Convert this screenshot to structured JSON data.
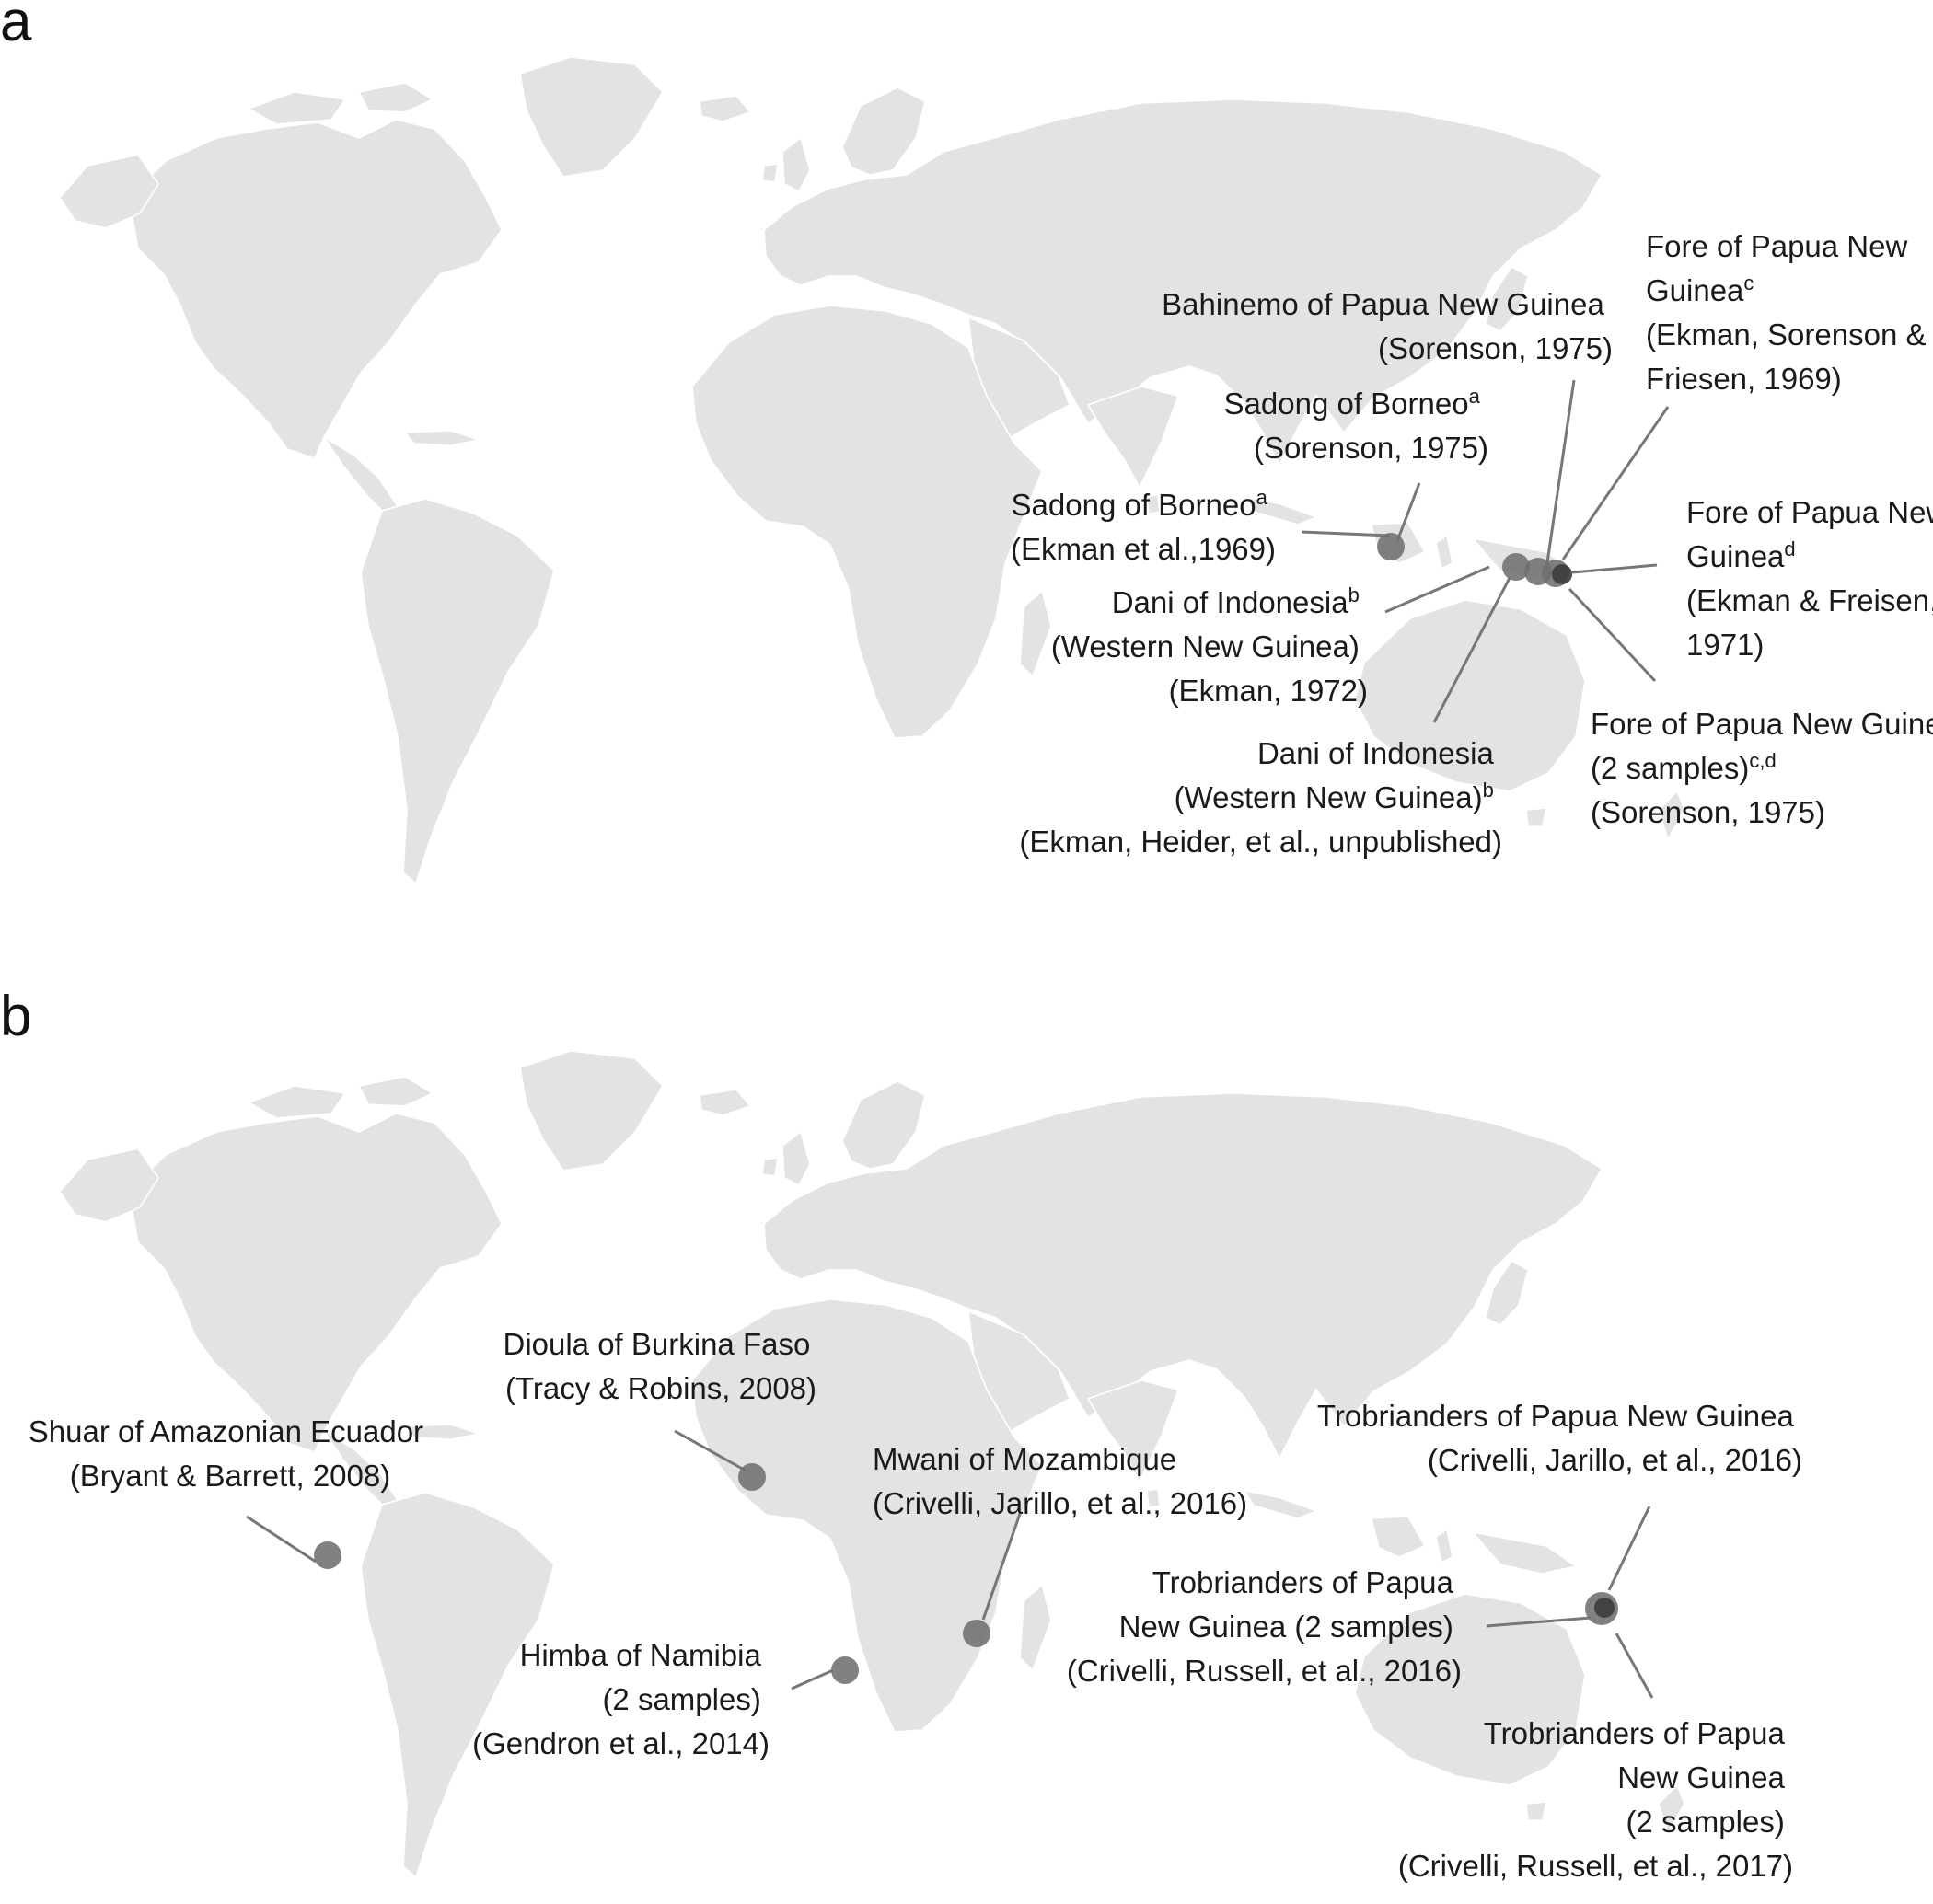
{
  "panels": [
    {
      "letter": "a",
      "labels": [
        {
          "lines": [
            "Bahinemo of Papua New Guinea",
            "(Sorenson, 1975)"
          ]
        },
        {
          "lines": [
            "Fore of Papua New",
            "Guinea^c",
            "(Ekman, Sorenson &",
            "Friesen, 1969)"
          ]
        },
        {
          "lines": [
            "Sadong of Borneo^a",
            "(Sorenson, 1975)"
          ]
        },
        {
          "lines": [
            "Sadong of Borneo^a",
            "(Ekman et al.,1969)"
          ]
        },
        {
          "lines": [
            "Fore of Papua New",
            "Guinea^d",
            "(Ekman & Freisen,",
            "1971)"
          ]
        },
        {
          "lines": [
            "Dani of Indonesia^b",
            "(Western New Guinea)",
            "(Ekman, 1972)"
          ]
        },
        {
          "lines": [
            "Fore of Papua New Guinea",
            "(2 samples)^c,d",
            "(Sorenson, 1975)"
          ]
        },
        {
          "lines": [
            "Dani of Indonesia",
            "(Western New Guinea)^b",
            "(Ekman, Heider, et al., unpublished)"
          ]
        }
      ]
    },
    {
      "letter": "b",
      "labels": [
        {
          "lines": [
            "Dioula of Burkina Faso",
            "(Tracy & Robins, 2008)"
          ]
        },
        {
          "lines": [
            "Shuar of Amazonian Ecuador",
            "(Bryant & Barrett, 2008)"
          ]
        },
        {
          "lines": [
            "Mwani of Mozambique",
            "(Crivelli, Jarillo, et al., 2016)"
          ]
        },
        {
          "lines": [
            "Himba of Namibia",
            "(2 samples)",
            "(Gendron et al., 2014)"
          ]
        },
        {
          "lines": [
            "Trobrianders of Papua New Guinea",
            "(Crivelli, Jarillo, et al., 2016)"
          ]
        },
        {
          "lines": [
            "Trobrianders of Papua",
            "New Guinea (2 samples)",
            "(Crivelli, Russell, et al., 2016)"
          ]
        },
        {
          "lines": [
            "Trobrianders of Papua",
            "New Guinea",
            "(2 samples)",
            "(Crivelli, Russell, et al., 2017)"
          ]
        }
      ]
    }
  ],
  "colors": {
    "land": "#e3e3e3",
    "marker": "#6f6f6f",
    "marker_dark": "#3c3c3c",
    "leader": "#777777"
  }
}
